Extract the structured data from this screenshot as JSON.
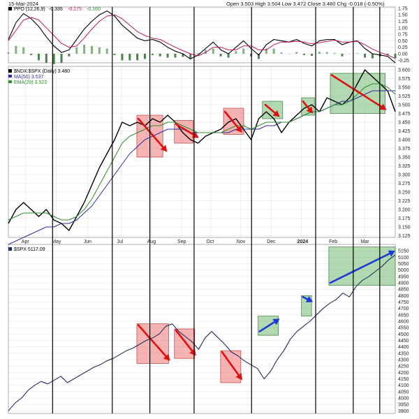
{
  "header": {
    "date": "15-Mar-2024",
    "quote": "Open 3.503  High 3.504  Low 3.472  Close 3.480  Chg -0.018 (-0.50%)"
  },
  "colors": {
    "price": "#000000",
    "ppo_signal": "#c2185b",
    "ma50": "#2f2f9f",
    "ema20": "#2e8b2e",
    "up_bar": "#6aa36a",
    "down_bar": "#2e6b2e",
    "spx": "#1f2f5f",
    "bear_box": "#f08080",
    "bull_box": "#7fc07f",
    "bear_arrow": "#e01010",
    "bull_arrow": "#1d39d6",
    "separator": "#000000",
    "grid": "#dddddd"
  },
  "chart_data": [
    {
      "type": "line",
      "panel": "ppo",
      "legend": {
        "label": "PPO (12,26,9)",
        "v1": "-0.335",
        "v2": "-0.175",
        "v3": "-0.160"
      },
      "ylim": [
        -0.35,
        1.8
      ],
      "y_ticks": [
        "1.75",
        "1.50",
        "1.25",
        "1.00",
        "0.75",
        "0.50",
        "0.25",
        "0.00",
        "-0.25"
      ],
      "series": [
        {
          "key": "ppo",
          "values": [
            0.55,
            1.2,
            1.55,
            1.35,
            1.05,
            0.65,
            0.3,
            0.05,
            0.15,
            0.55,
            0.95,
            1.25,
            1.5,
            1.65,
            1.45,
            1.1,
            0.85,
            0.6,
            0.5,
            0.55,
            0.45,
            0.25,
            0.1,
            0.0,
            -0.2,
            -0.05,
            0.2,
            0.45,
            0.15,
            0.0,
            0.25,
            0.5,
            0.2,
            -0.05,
            0.35,
            0.55,
            0.5,
            0.45,
            0.55,
            0.4,
            0.3,
            0.5,
            0.55,
            0.55,
            0.35,
            0.45,
            0.5,
            0.2,
            0.0,
            -0.05,
            -0.1,
            -0.35
          ]
        },
        {
          "key": "signal",
          "values": [
            0.5,
            0.9,
            1.3,
            1.4,
            1.3,
            1.0,
            0.7,
            0.4,
            0.25,
            0.3,
            0.6,
            0.95,
            1.25,
            1.45,
            1.5,
            1.35,
            1.1,
            0.85,
            0.7,
            0.6,
            0.55,
            0.4,
            0.25,
            0.12,
            0.0,
            -0.08,
            0.05,
            0.25,
            0.25,
            0.15,
            0.15,
            0.3,
            0.3,
            0.15,
            0.15,
            0.35,
            0.45,
            0.45,
            0.48,
            0.45,
            0.38,
            0.42,
            0.48,
            0.52,
            0.45,
            0.45,
            0.48,
            0.35,
            0.18,
            0.05,
            -0.05,
            -0.18
          ]
        }
      ]
    },
    {
      "type": "line",
      "panel": "ratio",
      "legend": {
        "ratio": "$NDX:$SPX (Daily) 3.480",
        "ma": "MA(50) 3.537",
        "ema": "EMA(20) 3.523"
      },
      "ylim": [
        3.12,
        3.61
      ],
      "y_ticks": [
        "3.600",
        "3.575",
        "3.550",
        "3.525",
        "3.500",
        "3.475",
        "3.450",
        "3.425",
        "3.400",
        "3.375",
        "3.350",
        "3.325",
        "3.300",
        "3.275",
        "3.250",
        "3.225",
        "3.200",
        "3.175",
        "3.150",
        "3.125"
      ],
      "x_ticks": [
        "Apr",
        "May",
        "Jun",
        "Jul",
        "Aug",
        "Sep",
        "Oct",
        "Nov",
        "Dec",
        "2024",
        "Feb",
        "Mar"
      ],
      "series": [
        {
          "key": "ratio",
          "values": [
            3.16,
            3.2,
            3.22,
            3.2,
            3.18,
            3.2,
            3.17,
            3.16,
            3.14,
            3.18,
            3.22,
            3.27,
            3.32,
            3.36,
            3.4,
            3.45,
            3.44,
            3.45,
            3.44,
            3.46,
            3.45,
            3.47,
            3.45,
            3.42,
            3.4,
            3.39,
            3.41,
            3.42,
            3.43,
            3.45,
            3.46,
            3.43,
            3.4,
            3.46,
            3.48,
            3.46,
            3.42,
            3.45,
            3.47,
            3.49,
            3.5,
            3.48,
            3.52,
            3.51,
            3.5,
            3.52,
            3.56,
            3.6,
            3.58,
            3.56,
            3.54,
            3.48
          ]
        },
        {
          "key": "ma50",
          "values": [
            3.1,
            3.11,
            3.12,
            3.13,
            3.14,
            3.15,
            3.15,
            3.16,
            3.16,
            3.17,
            3.19,
            3.21,
            3.24,
            3.27,
            3.3,
            3.33,
            3.36,
            3.38,
            3.4,
            3.41,
            3.42,
            3.43,
            3.43,
            3.43,
            3.42,
            3.42,
            3.42,
            3.42,
            3.42,
            3.42,
            3.43,
            3.43,
            3.43,
            3.43,
            3.44,
            3.44,
            3.45,
            3.45,
            3.46,
            3.47,
            3.48,
            3.48,
            3.49,
            3.5,
            3.51,
            3.51,
            3.52,
            3.53,
            3.54,
            3.54,
            3.54,
            3.54
          ]
        },
        {
          "key": "ema20",
          "values": [
            3.17,
            3.18,
            3.19,
            3.19,
            3.19,
            3.19,
            3.18,
            3.17,
            3.17,
            3.18,
            3.2,
            3.23,
            3.27,
            3.31,
            3.35,
            3.39,
            3.41,
            3.42,
            3.43,
            3.44,
            3.44,
            3.45,
            3.45,
            3.44,
            3.43,
            3.42,
            3.42,
            3.42,
            3.42,
            3.43,
            3.44,
            3.44,
            3.43,
            3.44,
            3.45,
            3.45,
            3.45,
            3.45,
            3.46,
            3.47,
            3.48,
            3.48,
            3.49,
            3.5,
            3.5,
            3.51,
            3.53,
            3.55,
            3.56,
            3.56,
            3.55,
            3.53
          ]
        }
      ]
    },
    {
      "type": "line",
      "panel": "spx",
      "legend": {
        "label": "$SPX 5117.09"
      },
      "ylim": [
        3880,
        5200
      ],
      "y_ticks": [
        "5150",
        "5100",
        "5050",
        "5000",
        "4950",
        "4900",
        "4850",
        "4800",
        "4750",
        "4700",
        "4650",
        "4600",
        "4550",
        "4500",
        "4450",
        "4400",
        "4350",
        "4300",
        "4250",
        "4200",
        "4150",
        "4100",
        "4050",
        "4000",
        "3950",
        "3900"
      ],
      "series": [
        {
          "key": "spx",
          "values": [
            3900,
            3960,
            4000,
            4060,
            4100,
            4130,
            4110,
            4140,
            4170,
            4120,
            4150,
            4180,
            4210,
            4240,
            4260,
            4290,
            4310,
            4340,
            4370,
            4390,
            4420,
            4450,
            4470,
            4500,
            4560,
            4580,
            4520,
            4480,
            4440,
            4380,
            4470,
            4520,
            4470,
            4420,
            4360,
            4330,
            4290,
            4260,
            4230,
            4150,
            4210,
            4300,
            4370,
            4460,
            4520,
            4560,
            4600,
            4650,
            4700,
            4740,
            4770,
            4820,
            4790,
            4870,
            4920,
            4950,
            4990,
            5030,
            5080,
            5117
          ]
        }
      ]
    }
  ],
  "annotations": {
    "separators": [
      20,
      47,
      64,
      84,
      110,
      139,
      156,
      168
    ],
    "boxes": [
      {
        "kind": "bear",
        "panel": "ratio",
        "x0": 44.5,
        "x1": 53.5,
        "y0": 3.35,
        "y1": 3.47
      },
      {
        "kind": "bear",
        "panel": "ratio",
        "x0": 57.5,
        "x1": 64,
        "y0": 3.39,
        "y1": 3.455
      },
      {
        "kind": "bear",
        "panel": "ratio",
        "x0": 74.5,
        "x1": 81.5,
        "y0": 3.415,
        "y1": 3.49
      },
      {
        "kind": "bull",
        "panel": "ratio",
        "x0": 88,
        "x1": 95,
        "y0": 3.46,
        "y1": 3.51
      },
      {
        "kind": "bull",
        "panel": "ratio",
        "x0": 101.5,
        "x1": 106,
        "y0": 3.47,
        "y1": 3.52
      },
      {
        "kind": "bull",
        "panel": "ratio",
        "x0": 111.5,
        "x1": 130.5,
        "y0": 3.475,
        "y1": 3.59
      },
      {
        "kind": "bear",
        "panel": "spx",
        "x0": 44.5,
        "x1": 55.5,
        "y0": 4270,
        "y1": 4580
      },
      {
        "kind": "bear",
        "panel": "spx",
        "x0": 57.5,
        "x1": 64.5,
        "y0": 4310,
        "y1": 4540
      },
      {
        "kind": "bear",
        "panel": "spx",
        "x0": 73.5,
        "x1": 80.5,
        "y0": 4120,
        "y1": 4370
      },
      {
        "kind": "bull",
        "panel": "spx",
        "x0": 86.5,
        "x1": 93.5,
        "y0": 4490,
        "y1": 4640
      },
      {
        "kind": "bull",
        "panel": "spx",
        "x0": 101.5,
        "x1": 105,
        "y0": 4640,
        "y1": 4800
      },
      {
        "kind": "bull",
        "panel": "spx",
        "x0": 111,
        "x1": 134,
        "y0": 4880,
        "y1": 5180
      }
    ],
    "arrows": [
      {
        "kind": "bear",
        "panel": "ratio",
        "x0": 45,
        "y0": 3.46,
        "x1": 55,
        "y1": 3.365
      },
      {
        "kind": "bear",
        "panel": "ratio",
        "x0": 58,
        "y0": 3.445,
        "x1": 66,
        "y1": 3.405
      },
      {
        "kind": "bear",
        "panel": "ratio",
        "x0": 75,
        "y0": 3.48,
        "x1": 81,
        "y1": 3.42
      },
      {
        "kind": "bear",
        "panel": "ratio",
        "x0": 89,
        "y0": 3.5,
        "x1": 94,
        "y1": 3.465
      },
      {
        "kind": "bear",
        "panel": "ratio",
        "x0": 102,
        "y0": 3.51,
        "x1": 105.5,
        "y1": 3.475
      },
      {
        "kind": "bear",
        "panel": "ratio",
        "x0": 112,
        "y0": 3.585,
        "x1": 131,
        "y1": 3.485
      },
      {
        "kind": "bear",
        "panel": "spx",
        "x0": 45,
        "y0": 4570,
        "x1": 56,
        "y1": 4290
      },
      {
        "kind": "bear",
        "panel": "spx",
        "x0": 58,
        "y0": 4530,
        "x1": 65,
        "y1": 4330
      },
      {
        "kind": "bear",
        "panel": "spx",
        "x0": 74,
        "y0": 4360,
        "x1": 81,
        "y1": 4140
      },
      {
        "kind": "bull",
        "panel": "spx",
        "x0": 87,
        "y0": 4520,
        "x1": 94,
        "y1": 4620
      },
      {
        "kind": "bull",
        "panel": "spx",
        "x0": 102,
        "y0": 4790,
        "x1": 105.5,
        "y1": 4750
      },
      {
        "kind": "bull",
        "panel": "spx",
        "x0": 111.5,
        "y0": 4900,
        "x1": 134,
        "y1": 5150
      }
    ]
  }
}
